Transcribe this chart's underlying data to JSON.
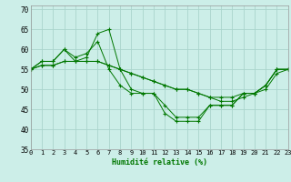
{
  "xlabel": "Humidité relative (%)",
  "xlim": [
    0,
    23
  ],
  "ylim": [
    35,
    71
  ],
  "yticks": [
    35,
    40,
    45,
    50,
    55,
    60,
    65,
    70
  ],
  "xticks": [
    0,
    1,
    2,
    3,
    4,
    5,
    6,
    7,
    8,
    9,
    10,
    11,
    12,
    13,
    14,
    15,
    16,
    17,
    18,
    19,
    20,
    21,
    22,
    23
  ],
  "background_color": "#cceee8",
  "grid_color": "#aad4cc",
  "line_color": "#007700",
  "series": [
    [
      55,
      57,
      57,
      60,
      57,
      58,
      64,
      65,
      55,
      50,
      49,
      49,
      44,
      42,
      42,
      42,
      46,
      46,
      46,
      49,
      49,
      51,
      55,
      55
    ],
    [
      55,
      57,
      57,
      60,
      58,
      59,
      62,
      55,
      51,
      49,
      49,
      49,
      46,
      43,
      43,
      43,
      46,
      46,
      46,
      49,
      49,
      51,
      55,
      55
    ],
    [
      55,
      56,
      56,
      57,
      57,
      57,
      57,
      56,
      55,
      54,
      53,
      52,
      51,
      50,
      50,
      49,
      48,
      48,
      48,
      49,
      49,
      51,
      55,
      55
    ],
    [
      55,
      56,
      56,
      57,
      57,
      57,
      57,
      56,
      55,
      54,
      53,
      52,
      51,
      50,
      50,
      49,
      48,
      47,
      47,
      48,
      49,
      50,
      54,
      55
    ]
  ]
}
